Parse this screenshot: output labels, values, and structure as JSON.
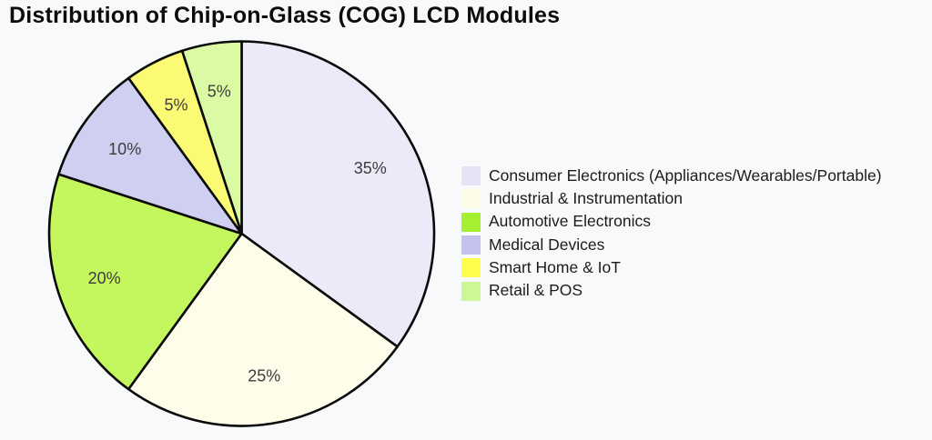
{
  "page": {
    "background": "#F8F9FB",
    "title": "Distribution of Chip-on-Glass (COG) LCD Modules",
    "title_color": "#0C0C0C"
  },
  "chart_data": {
    "type": "pie",
    "title": "Distribution of Chip-on-Glass (COG) LCD Modules",
    "unit": "percent",
    "start_angle_deg": 90,
    "direction": "clockwise",
    "pct_label_distance": 0.75,
    "pct_label_color": "#3D3D3D",
    "edge_color": "#0A0A0A",
    "edge_width": 2.6,
    "legend_position": "center-right",
    "legend_frame": false,
    "categories": [
      "Consumer Electronics (Appliances/Wearables/Portable)",
      "Industrial & Instrumentation",
      "Automotive Electronics",
      "Medical Devices",
      "Smart Home & IoT",
      "Retail & POS"
    ],
    "values": [
      35,
      25,
      20,
      10,
      5,
      5
    ],
    "segments": [
      {
        "label": "Consumer Electronics (Appliances/Wearables/Portable)",
        "value": 35,
        "pct_label": "35%",
        "slice_color": "#EAEAF8",
        "legend_color": "#E4E4F6"
      },
      {
        "label": "Industrial & Instrumentation",
        "value": 25,
        "pct_label": "25%",
        "slice_color": "#FDFDE9",
        "legend_color": "#FCFCE6"
      },
      {
        "label": "Automotive Electronics",
        "value": 20,
        "pct_label": "20%",
        "slice_color": "#C4F65D",
        "legend_color": "#A5EF31"
      },
      {
        "label": "Medical Devices",
        "value": 10,
        "pct_label": "10%",
        "slice_color": "#CFCFF2",
        "legend_color": "#C3C3EE"
      },
      {
        "label": "Smart Home & IoT",
        "value": 5,
        "pct_label": "5%",
        "slice_color": "#FBFA74",
        "legend_color": "#FDFD4A"
      },
      {
        "label": "Retail & POS",
        "value": 5,
        "pct_label": "5%",
        "slice_color": "#DAFBA4",
        "legend_color": "#CDF794"
      }
    ]
  }
}
